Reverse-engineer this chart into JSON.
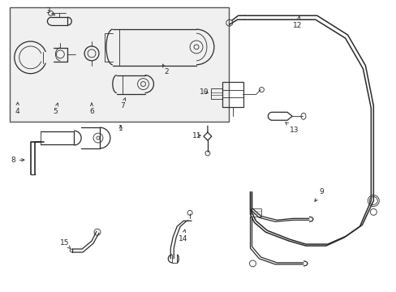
{
  "bg_color": "#ffffff",
  "line_color": "#2a2a2a",
  "box_fill": "#f0f0f0",
  "box_edge": "#555555",
  "figsize": [
    4.89,
    3.6
  ],
  "dpi": 100
}
